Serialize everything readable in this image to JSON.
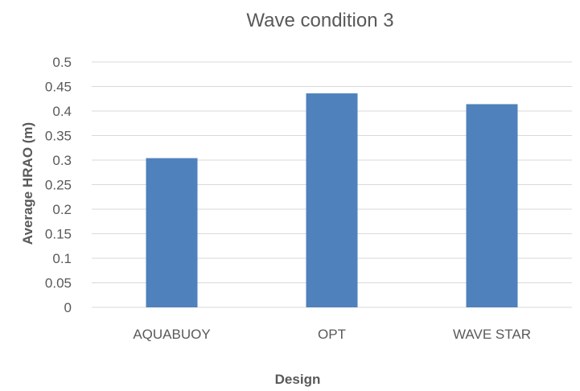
{
  "chart_data": {
    "type": "bar",
    "title": "Wave condition 3",
    "xlabel": "Design",
    "ylabel": "Average HRAO (m)",
    "categories": [
      "AQUABUOY",
      "OPT",
      "WAVE STAR"
    ],
    "values": [
      0.304,
      0.436,
      0.414
    ],
    "ylim": [
      0,
      0.5
    ],
    "yticks": [
      "0",
      "0.05",
      "0.1",
      "0.15",
      "0.2",
      "0.25",
      "0.3",
      "0.35",
      "0.4",
      "0.45",
      "0.5"
    ],
    "grid": true,
    "legend": "none",
    "bar_color": "#4f81bd",
    "grid_color": "#d9d9d9"
  }
}
